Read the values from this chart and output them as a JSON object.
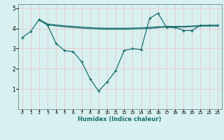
{
  "bg_color": "#cce8e8",
  "grid_color": "#e8c8c8",
  "plot_bg_color": "#d8f0f0",
  "line_color": "#1a7070",
  "xlabel": "Humidex (Indice chaleur)",
  "xlim": [
    -0.5,
    23.5
  ],
  "ylim": [
    0,
    5.2
  ],
  "yticks": [
    1,
    2,
    3,
    4,
    5
  ],
  "xticks": [
    0,
    1,
    2,
    3,
    4,
    5,
    6,
    7,
    8,
    9,
    10,
    11,
    12,
    13,
    14,
    15,
    16,
    17,
    18,
    19,
    20,
    21,
    22,
    23
  ],
  "line1_x": [
    0,
    1,
    2,
    3,
    4,
    5,
    6,
    7,
    8,
    9,
    10,
    11,
    12,
    13,
    14,
    15,
    16,
    17,
    18,
    19,
    20,
    21,
    22,
    23
  ],
  "line1_y": [
    3.55,
    3.85,
    4.45,
    4.15,
    3.25,
    2.9,
    2.85,
    2.35,
    1.5,
    0.9,
    1.35,
    1.9,
    2.9,
    3.0,
    2.95,
    4.5,
    4.75,
    4.05,
    4.05,
    3.9,
    3.9,
    4.15,
    4.15,
    4.15
  ],
  "line2_x": [
    2,
    3,
    4,
    5,
    6,
    7,
    8,
    9,
    10,
    11,
    12,
    13,
    14,
    15,
    16,
    17,
    18,
    19,
    20,
    21,
    22,
    23
  ],
  "line2_y": [
    4.45,
    4.22,
    4.17,
    4.13,
    4.1,
    4.07,
    4.04,
    4.02,
    4.01,
    4.01,
    4.01,
    4.02,
    4.03,
    4.05,
    4.08,
    4.1,
    4.1,
    4.1,
    4.12,
    4.14,
    4.15,
    4.15
  ],
  "line3_x": [
    2,
    3,
    4,
    5,
    6,
    7,
    8,
    9,
    10,
    11,
    12,
    13,
    14,
    15,
    16,
    17,
    18,
    19,
    20,
    21,
    22,
    23
  ],
  "line3_y": [
    4.4,
    4.18,
    4.13,
    4.08,
    4.05,
    4.02,
    3.99,
    3.97,
    3.96,
    3.96,
    3.96,
    3.97,
    3.98,
    4.0,
    4.04,
    4.07,
    4.07,
    4.07,
    4.09,
    4.11,
    4.12,
    4.12
  ]
}
